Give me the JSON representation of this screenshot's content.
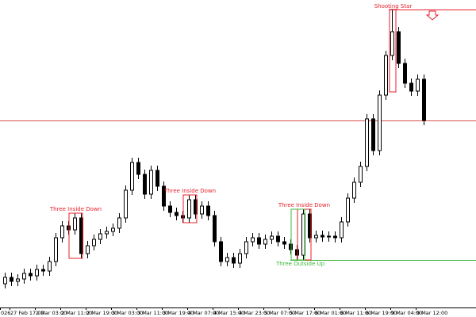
{
  "chart_data": {
    "type": "candlestick",
    "open": [
      42,
      50,
      45,
      48,
      55,
      52,
      60,
      58,
      70,
      100,
      115,
      110,
      125,
      80,
      90,
      98,
      105,
      108,
      112,
      125,
      160,
      195,
      180,
      155,
      185,
      165,
      140,
      132,
      128,
      125,
      148,
      130,
      140,
      128,
      95,
      70,
      75,
      68,
      80,
      95,
      100,
      92,
      98,
      102,
      95,
      92,
      85,
      78,
      130,
      100,
      103,
      101,
      102,
      100,
      120,
      150,
      170,
      190,
      250,
      210,
      280,
      330,
      360,
      320,
      295,
      285,
      300
    ],
    "high": [
      56,
      56,
      54,
      61,
      61,
      66,
      66,
      76,
      106,
      121,
      121,
      131,
      131,
      96,
      104,
      111,
      114,
      118,
      131,
      166,
      201,
      201,
      186,
      191,
      191,
      171,
      146,
      138,
      134,
      154,
      154,
      146,
      146,
      134,
      101,
      81,
      81,
      86,
      101,
      106,
      106,
      104,
      108,
      108,
      101,
      98,
      91,
      136,
      136,
      109,
      109,
      108,
      108,
      126,
      156,
      176,
      196,
      256,
      256,
      286,
      336,
      388,
      366,
      326,
      301,
      306,
      306
    ],
    "low": [
      36,
      39,
      39,
      42,
      46,
      46,
      52,
      52,
      64,
      94,
      104,
      104,
      74,
      74,
      84,
      92,
      99,
      102,
      106,
      119,
      154,
      174,
      149,
      149,
      159,
      134,
      126,
      122,
      119,
      119,
      124,
      124,
      122,
      89,
      64,
      64,
      62,
      62,
      74,
      89,
      86,
      86,
      92,
      89,
      86,
      79,
      72,
      72,
      94,
      94,
      95,
      95,
      94,
      94,
      114,
      144,
      164,
      184,
      204,
      204,
      274,
      324,
      314,
      289,
      279,
      279,
      242
    ],
    "close": [
      50,
      45,
      48,
      55,
      52,
      60,
      58,
      70,
      100,
      115,
      110,
      125,
      80,
      90,
      98,
      105,
      108,
      112,
      125,
      160,
      195,
      180,
      155,
      185,
      165,
      140,
      132,
      128,
      125,
      148,
      130,
      140,
      128,
      95,
      70,
      75,
      68,
      80,
      95,
      100,
      92,
      98,
      102,
      95,
      92,
      85,
      78,
      130,
      100,
      103,
      101,
      102,
      100,
      120,
      150,
      170,
      190,
      250,
      210,
      280,
      330,
      360,
      320,
      295,
      285,
      300,
      248
    ],
    "ylim": [
      10,
      400
    ],
    "x_labels": [
      "026",
      "27 Feb 17:00",
      "2 Mar 03:00",
      "2 Mar 11:00",
      "2 Mar 19:00",
      "3 Mar 03:00",
      "3 Mar 11:00",
      "3 Mar 19:00",
      "4 Mar 07:00",
      "4 Mar 15:00",
      "4 Mar 23:00",
      "5 Mar 07:00",
      "5 Mar 17:00",
      "6 Mar 01:00",
      "6 Mar 11:00",
      "6 Mar 19:00",
      "9 Mar 04:00",
      "9 Mar 12:00"
    ],
    "hlines": [
      {
        "value": 248,
        "color": "#d9534f"
      },
      {
        "value": 388,
        "color": "#e8202a"
      },
      {
        "value": 72,
        "color": "#3cb83c"
      }
    ],
    "patterns": [
      {
        "text": "Three Inside Down",
        "color": "#e8202a"
      },
      {
        "text": "Three Inside Down",
        "color": "#e8202a"
      },
      {
        "text": "Three Inside Down",
        "color": "#e8202a"
      },
      {
        "text": "Three Outside Up",
        "color": "#3cb83c"
      },
      {
        "text": "Shooting Star",
        "color": "#e8202a"
      }
    ]
  }
}
